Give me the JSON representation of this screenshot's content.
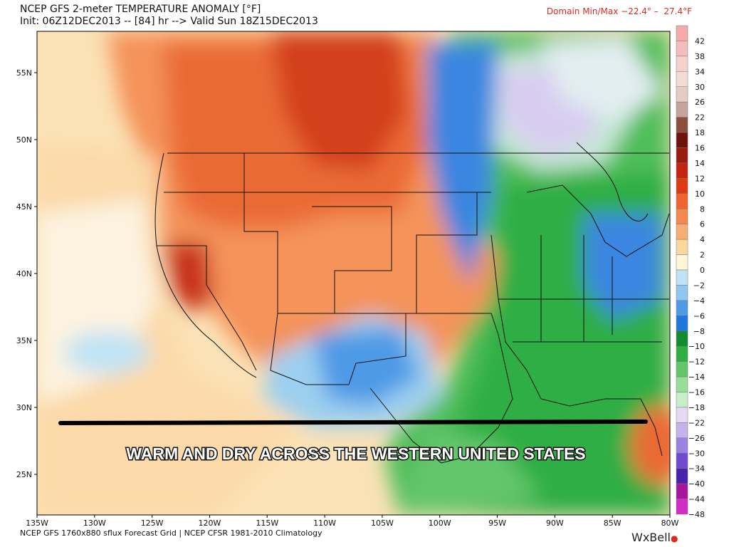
{
  "header": {
    "title": "NCEP GFS 2-meter TEMPERATURE ANOMALY [°F]",
    "subtitle": "Init: 06Z12DEC2013 -- [84] hr --> Valid Sun 18Z15DEC2013",
    "domain_minmax": "Domain Min/Max −22.4° –  27.4°F"
  },
  "footer": {
    "source": "NCEP GFS 1760x880 sflux Forecast Grid | NCEP CFSR 1981-2010 Climatology",
    "brand": "WxBell"
  },
  "annotation": {
    "banner_text": "WARM AND DRY ACROSS THE WESTERN UNITED STATES"
  },
  "axes": {
    "lat_labels": [
      "55N",
      "50N",
      "45N",
      "40N",
      "35N",
      "30N",
      "25N"
    ],
    "lat_values": [
      55,
      50,
      45,
      40,
      35,
      30,
      25
    ],
    "lon_labels": [
      "135W",
      "130W",
      "125W",
      "120W",
      "115W",
      "110W",
      "105W",
      "100W",
      "95W",
      "90W",
      "85W",
      "80W"
    ],
    "lon_values": [
      -135,
      -130,
      -125,
      -120,
      -115,
      -110,
      -105,
      -100,
      -95,
      -90,
      -85,
      -80
    ]
  },
  "legend": {
    "labels": [
      "42",
      "38",
      "34",
      "30",
      "26",
      "22",
      "18",
      "16",
      "14",
      "12",
      "10",
      "8",
      "6",
      "4",
      "2",
      "0",
      "−2",
      "−4",
      "−6",
      "−8",
      "−10",
      "−12",
      "−14",
      "−16",
      "−18",
      "−22",
      "−26",
      "−30",
      "−34",
      "−40",
      "−44",
      "−48"
    ],
    "colors": [
      "#f3aaa8",
      "#f5bcbc",
      "#f6cfcf",
      "#f4dcd6",
      "#e6cbc3",
      "#c6a39b",
      "#8c4e3f",
      "#6f1209",
      "#9a1c0f",
      "#c3230f",
      "#dc3a12",
      "#ef6431",
      "#f28950",
      "#f7ae73",
      "#fbd79c",
      "#fdf7d8",
      "#bfe3f5",
      "#8fc7f0",
      "#4f9ae6",
      "#1f76dc",
      "#128c2e",
      "#2fae44",
      "#63c66a",
      "#98dd98",
      "#c8eec8",
      "#e6d9f3",
      "#c7b3ec",
      "#9c82e0",
      "#6e4bcf",
      "#4a21a9",
      "#a8159c",
      "#d22dc4"
    ]
  },
  "colors": {
    "warm_strong": "#d94a1f",
    "warm_mid": "#f08a50",
    "warm_light": "#f7c58e",
    "cold_green": "#2fae44",
    "cold_blue": "#3a86e0",
    "accent_red": "#e0281e"
  }
}
